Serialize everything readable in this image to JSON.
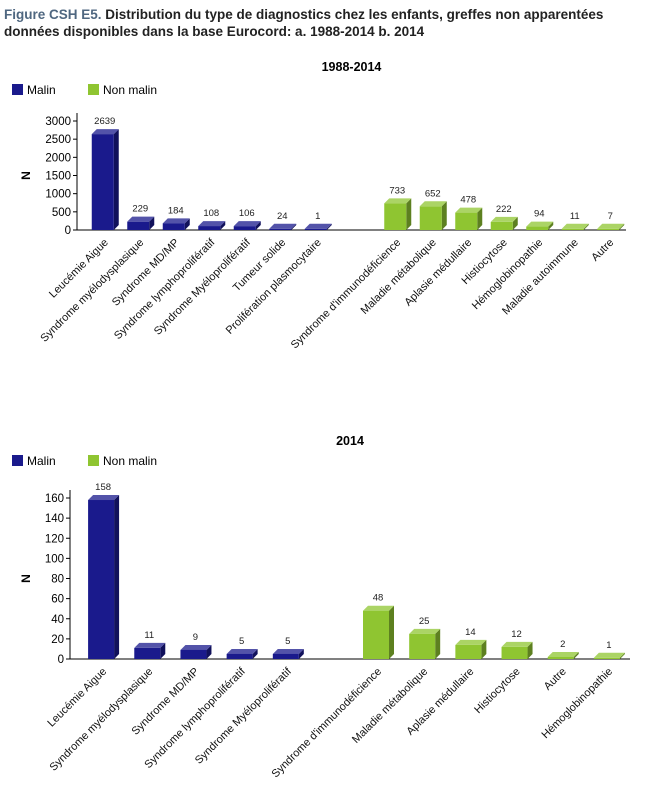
{
  "figure": {
    "prefix": "Figure CSH E5.",
    "title": "Distribution du type de diagnostics chez les enfants, greffes non apparentées données disponibles dans la base Eurocord: a. 1988-2014 b. 2014"
  },
  "colors": {
    "malin": "#1a1a8c",
    "non_malin": "#8fc531"
  },
  "chart_data": [
    {
      "type": "bar",
      "title": "1988-2014",
      "ylabel": "N",
      "ylim": [
        0,
        3000
      ],
      "yticks": [
        0,
        500,
        1000,
        1500,
        2000,
        2500,
        3000
      ],
      "grid": false,
      "legend": {
        "position": "top-left",
        "entries": [
          "Malin",
          "Non malin"
        ]
      },
      "series": [
        {
          "name": "Malin",
          "categories": [
            "Leucémie Aigue",
            "Syndrome myélodysplasique",
            "Syndrome MD/MP",
            "Syndrome lymphoprolifératif",
            "Syndrome Myéloprolifératif",
            "Tumeur solide",
            "Prolifération plasmocytaire"
          ],
          "values": [
            2639,
            229,
            184,
            108,
            106,
            24,
            1
          ]
        },
        {
          "name": "Non malin",
          "categories": [
            "Syndrome d'immunodéficience",
            "Maladie métabolique",
            "Aplasie médullaire",
            "Histiocytose",
            "Hémoglobinopathie",
            "Maladie autoimmune",
            "Autre"
          ],
          "values": [
            733,
            652,
            478,
            222,
            94,
            11,
            7
          ]
        }
      ]
    },
    {
      "type": "bar",
      "title": "2014",
      "ylabel": "N",
      "ylim": [
        0,
        160
      ],
      "yticks": [
        0,
        20,
        40,
        60,
        80,
        100,
        120,
        140,
        160
      ],
      "grid": false,
      "legend": {
        "position": "top-left",
        "entries": [
          "Malin",
          "Non malin"
        ]
      },
      "series": [
        {
          "name": "Malin",
          "categories": [
            "Leucémie Aigue",
            "Syndrome myélodysplasique",
            "Syndrome MD/MP",
            "Syndrome lymphoprolifératif",
            "Syndrome Myéloprolifératif"
          ],
          "values": [
            158,
            11,
            9,
            5,
            5
          ]
        },
        {
          "name": "Non malin",
          "categories": [
            "Syndrome d'immunodéficience",
            "Maladie métabolique",
            "Aplasie médullaire",
            "Histiocytose",
            "Autre",
            "Hémoglobinopathie"
          ],
          "values": [
            48,
            25,
            14,
            12,
            2,
            1
          ]
        }
      ]
    }
  ]
}
